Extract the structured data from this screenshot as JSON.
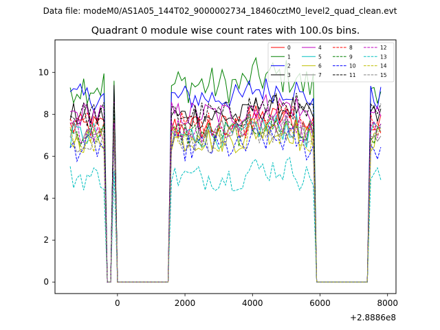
{
  "figure": {
    "suptitle": "Data file: modeM0/AS1A05_144T02_9000002734_18460cztM0_level2_quad_clean.evt"
  },
  "chart_data": {
    "type": "line",
    "title": "Quadrant 0 module wise count rates with 100.0s bins.",
    "xlabel": "",
    "ylabel": "",
    "x_offset_label": "+2.8886e8",
    "xlim": [
      -1850,
      8250
    ],
    "ylim": [
      -0.55,
      11.55
    ],
    "xticks": [
      0,
      2000,
      4000,
      6000,
      8000
    ],
    "xtick_labels": [
      "0",
      "2000",
      "4000",
      "6000",
      "8000"
    ],
    "yticks": [
      0,
      2,
      4,
      6,
      8,
      10
    ],
    "ytick_labels": [
      "0",
      "2",
      "4",
      "6",
      "8",
      "10"
    ],
    "grid": false,
    "legend_location": "upper right",
    "legend_columns": 4,
    "segments": [
      {
        "x_start": -1400,
        "x_end": -300
      },
      {
        "x_start": -100,
        "x_end": -100
      },
      {
        "x_start": 1600,
        "x_end": 5800
      },
      {
        "x_start": 7500,
        "x_end": 7800
      }
    ],
    "zero_floor_x": [
      -300,
      -200,
      0,
      100,
      1500,
      5900,
      7400
    ],
    "series": [
      {
        "name": "0",
        "color": "#ff0000",
        "dash": "solid",
        "level": 7.4,
        "gap_value": 7.4
      },
      {
        "name": "1",
        "color": "#008000",
        "dash": "solid",
        "level": 9.4,
        "gap_value": 9.6
      },
      {
        "name": "2",
        "color": "#0000ff",
        "dash": "solid",
        "level": 8.8,
        "gap_value": 9.2
      },
      {
        "name": "3",
        "color": "#000000",
        "dash": "solid",
        "level": 7.9,
        "gap_value": 9.4
      },
      {
        "name": "4",
        "color": "#bf00bf",
        "dash": "solid",
        "level": 8.0,
        "gap_value": 8.6
      },
      {
        "name": "5",
        "color": "#00bfbf",
        "dash": "solid",
        "level": 7.0,
        "gap_value": 7.9
      },
      {
        "name": "6",
        "color": "#bfbf00",
        "dash": "solid",
        "level": 6.8,
        "gap_value": 7.5
      },
      {
        "name": "7",
        "color": "#808080",
        "dash": "solid",
        "level": 7.1,
        "gap_value": 7.7
      },
      {
        "name": "8",
        "color": "#ff0000",
        "dash": "dashed",
        "level": 7.5,
        "gap_value": 7.8
      },
      {
        "name": "9",
        "color": "#008000",
        "dash": "dashed",
        "level": 7.1,
        "gap_value": 8.4
      },
      {
        "name": "10",
        "color": "#0000ff",
        "dash": "dashed",
        "level": 6.4,
        "gap_value": 7.0
      },
      {
        "name": "11",
        "color": "#000000",
        "dash": "dashed",
        "level": 8.0,
        "gap_value": 9.0
      },
      {
        "name": "12",
        "color": "#bf00bf",
        "dash": "dashed",
        "level": 7.3,
        "gap_value": 7.6
      },
      {
        "name": "13",
        "color": "#00bfbf",
        "dash": "dashed",
        "level": 5.0,
        "gap_value": 5.3
      },
      {
        "name": "14",
        "color": "#bfbf00",
        "dash": "dashed",
        "level": 6.8,
        "gap_value": 7.2
      },
      {
        "name": "15",
        "color": "#808080",
        "dash": "dashed",
        "level": 6.8,
        "gap_value": 7.3
      }
    ]
  }
}
